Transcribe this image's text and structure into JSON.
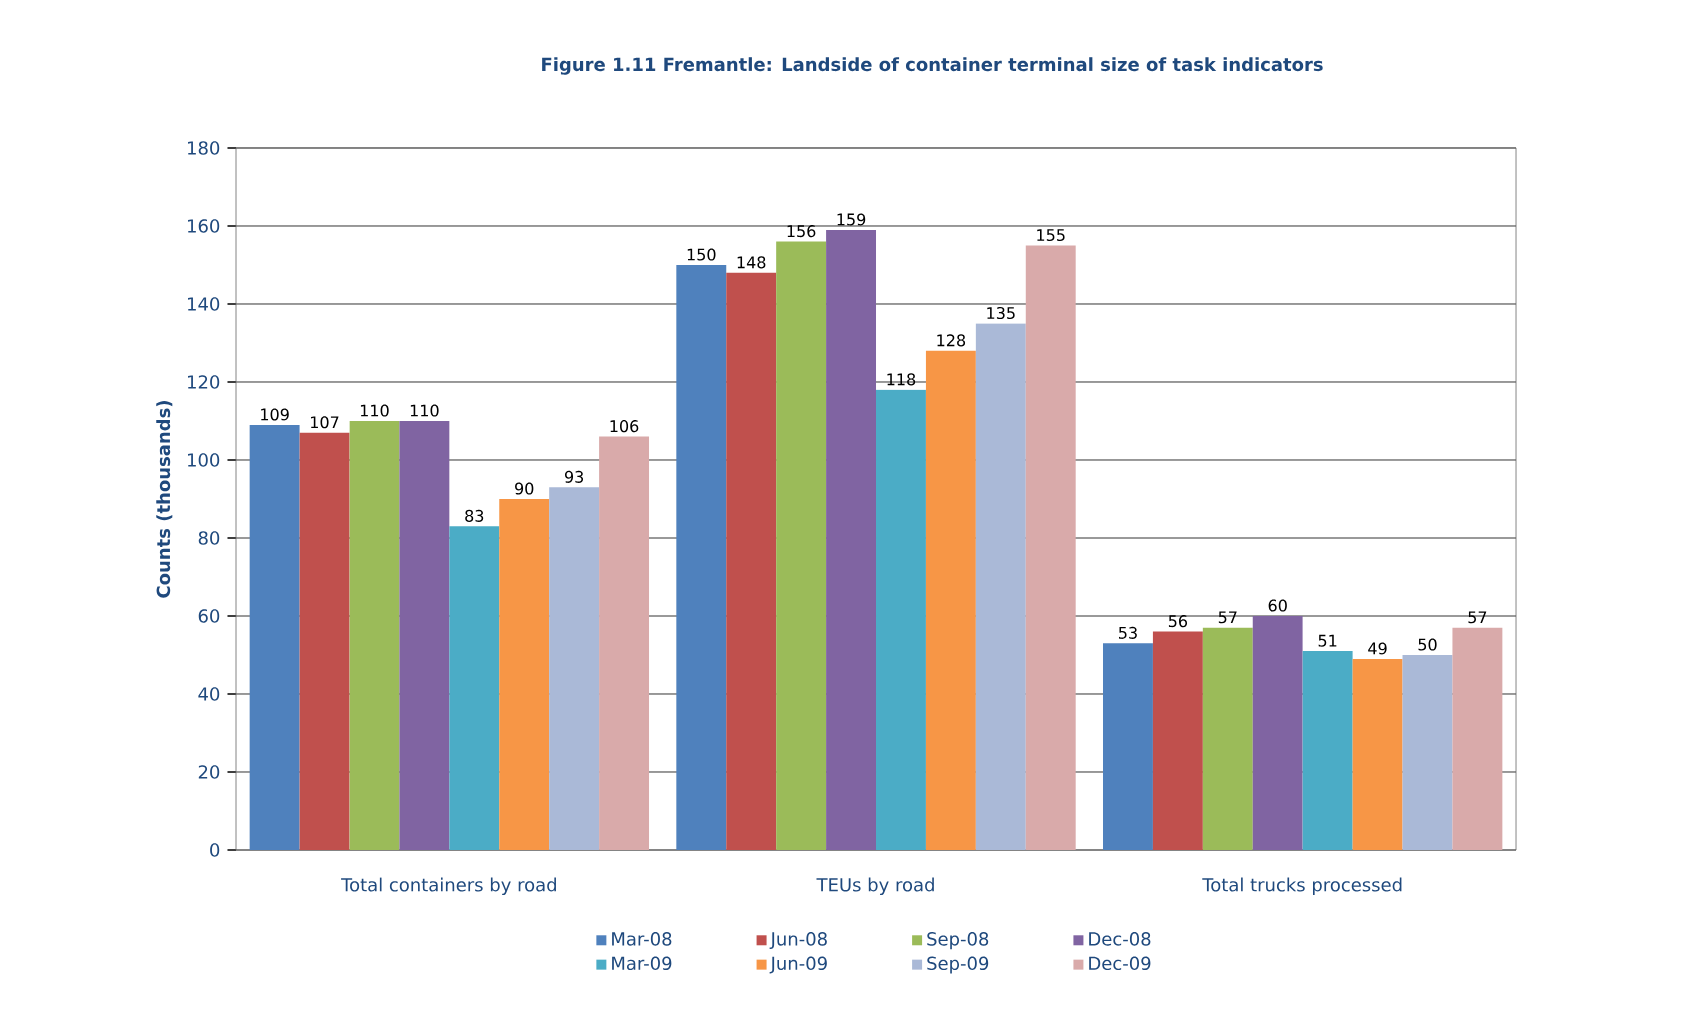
{
  "chart_data": {
    "type": "bar",
    "title": "Figure 1.11 Fremantle: Landside of container terminal size of task indicators",
    "ylabel": "Counts (thousands)",
    "categories": [
      "Total containers by road",
      "TEUs by road",
      "Total trucks  processed"
    ],
    "series": [
      {
        "name": "Mar-08",
        "color": "#4f81bd",
        "values": [
          109,
          150,
          53
        ]
      },
      {
        "name": "Jun-08",
        "color": "#c0504d",
        "values": [
          107,
          148,
          56
        ]
      },
      {
        "name": "Sep-08",
        "color": "#9bbb59",
        "values": [
          110,
          156,
          57
        ]
      },
      {
        "name": "Dec-08",
        "color": "#8064a2",
        "values": [
          110,
          159,
          60
        ]
      },
      {
        "name": "Mar-09",
        "color": "#4bacc6",
        "values": [
          83,
          118,
          51
        ]
      },
      {
        "name": "Jun-09",
        "color": "#f79646",
        "values": [
          90,
          128,
          49
        ]
      },
      {
        "name": "Sep-09",
        "color": "#aab9d7",
        "values": [
          93,
          135,
          50
        ]
      },
      {
        "name": "Dec-09",
        "color": "#d9aaaa",
        "values": [
          106,
          155,
          57
        ]
      }
    ],
    "ylim": [
      0,
      180
    ],
    "yticks": [
      0,
      20,
      40,
      60,
      80,
      100,
      120,
      140,
      160,
      180
    ],
    "grid": "y",
    "legend": "bottom",
    "data_labels": true
  }
}
